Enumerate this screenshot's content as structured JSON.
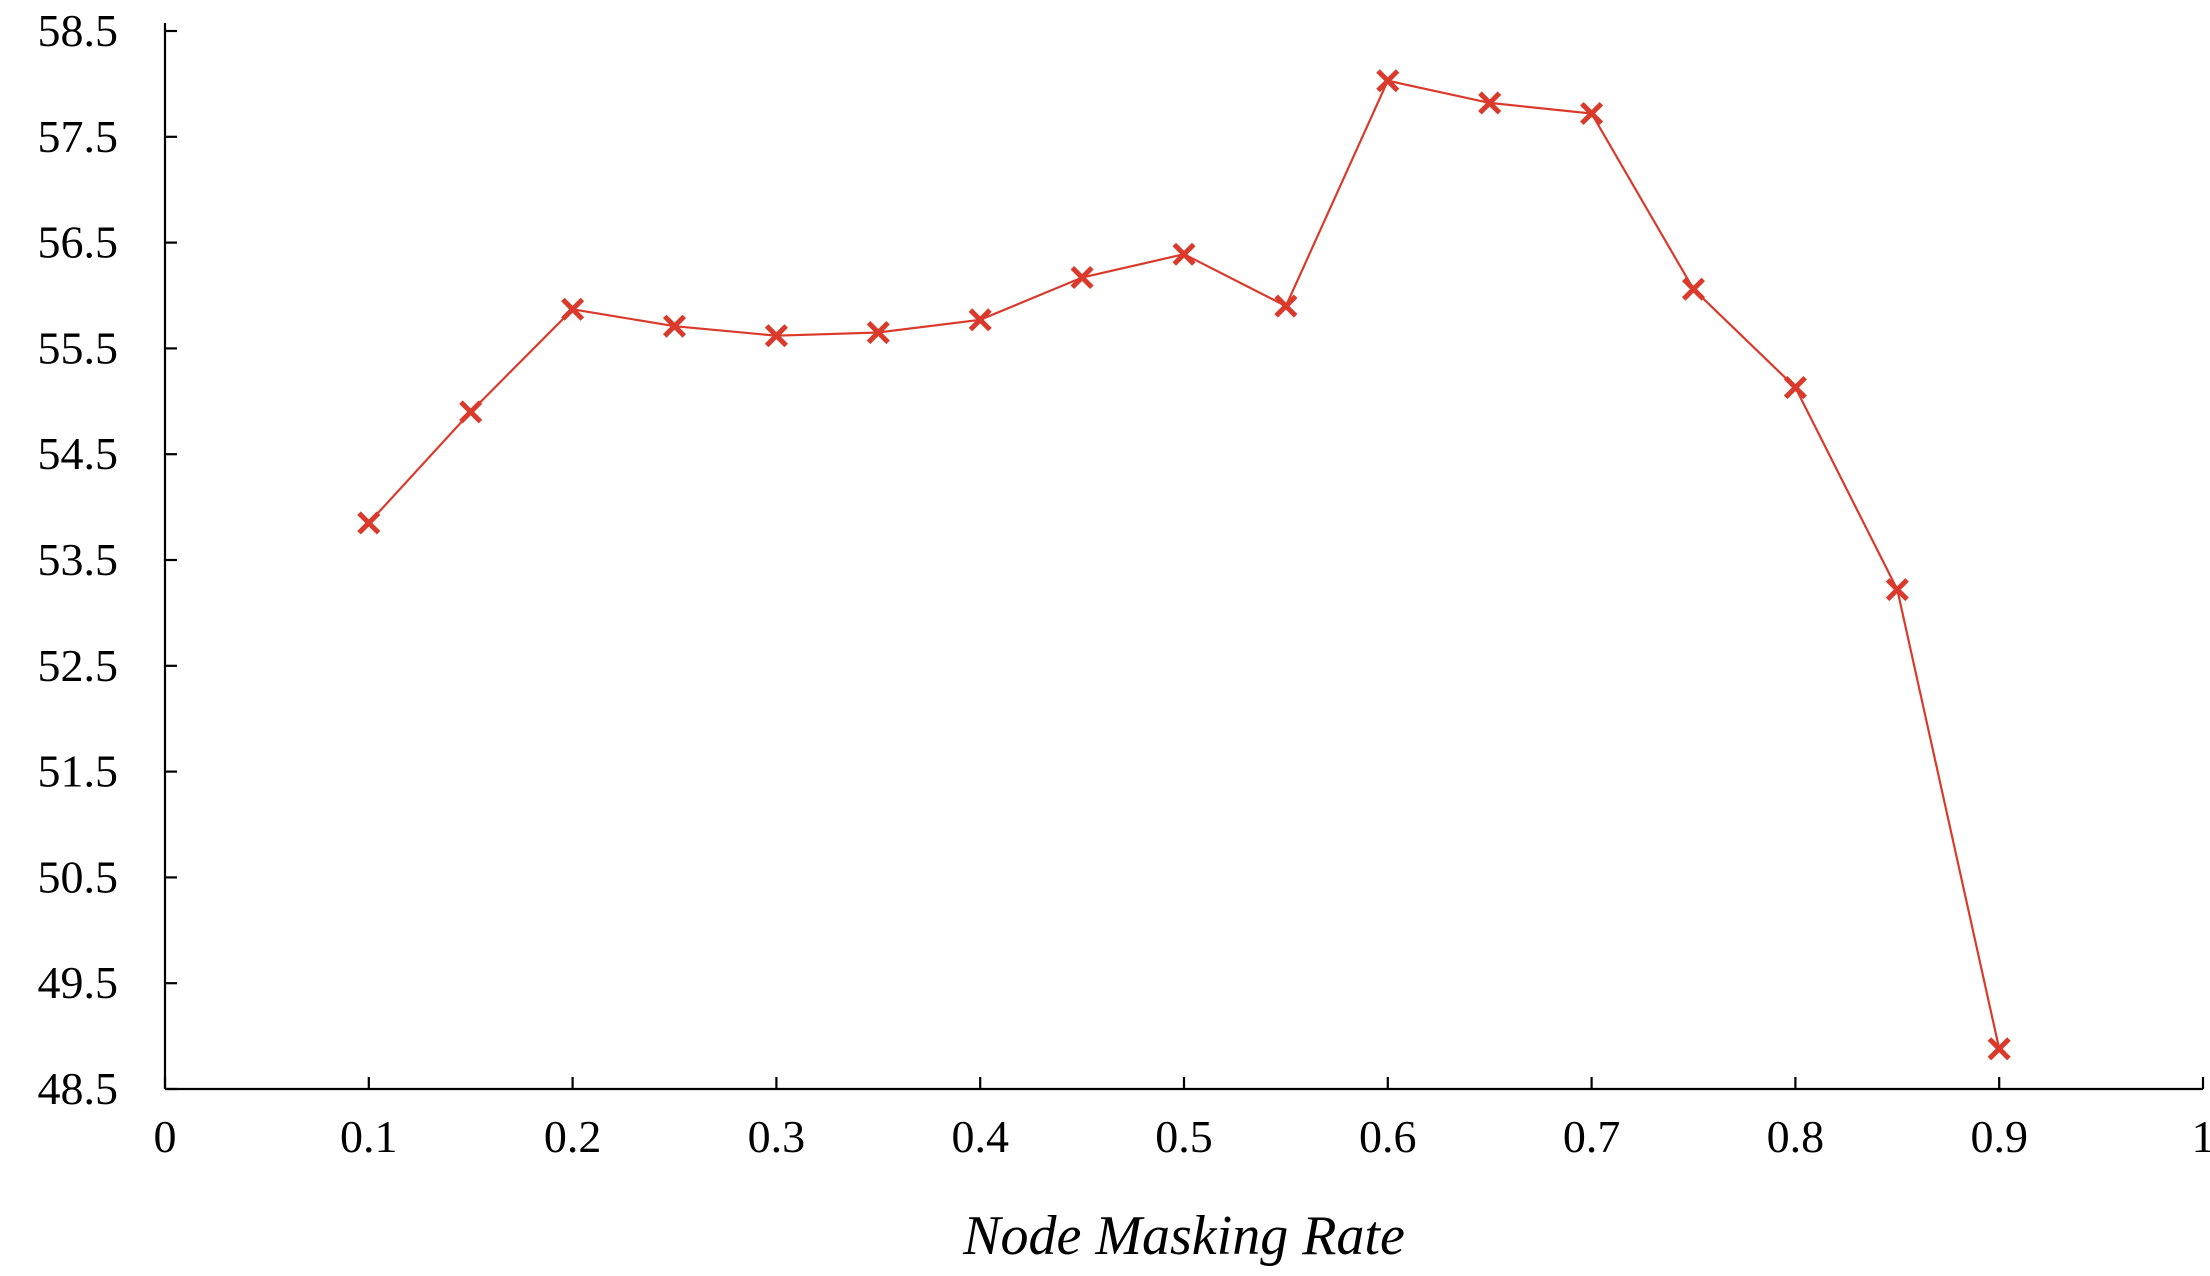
{
  "chart_data": {
    "type": "line",
    "title": "",
    "xlabel": "Node Masking Rate",
    "ylabel": "",
    "xlim": [
      0,
      1
    ],
    "ylim": [
      48.5,
      58.5
    ],
    "x_ticks": [
      "0",
      "0.1",
      "0.2",
      "0.3",
      "0.4",
      "0.5",
      "0.6",
      "0.7",
      "0.8",
      "0.9",
      "1"
    ],
    "y_ticks": [
      "48.5",
      "49.5",
      "50.5",
      "51.5",
      "52.5",
      "53.5",
      "54.5",
      "55.5",
      "56.5",
      "57.5",
      "58.5"
    ],
    "grid": false,
    "legend": "none",
    "marker": "x",
    "color": "#d93a2b",
    "series": [
      {
        "x": [
          0.1,
          0.15,
          0.2,
          0.25,
          0.3,
          0.35,
          0.4,
          0.45,
          0.5,
          0.55,
          0.6,
          0.65,
          0.7,
          0.75,
          0.8,
          0.85,
          0.9
        ],
        "values": [
          53.85,
          54.9,
          55.87,
          55.71,
          55.62,
          55.65,
          55.77,
          56.17,
          56.39,
          55.9,
          58.03,
          57.82,
          57.72,
          56.06,
          55.13,
          53.22,
          48.88
        ]
      }
    ]
  }
}
